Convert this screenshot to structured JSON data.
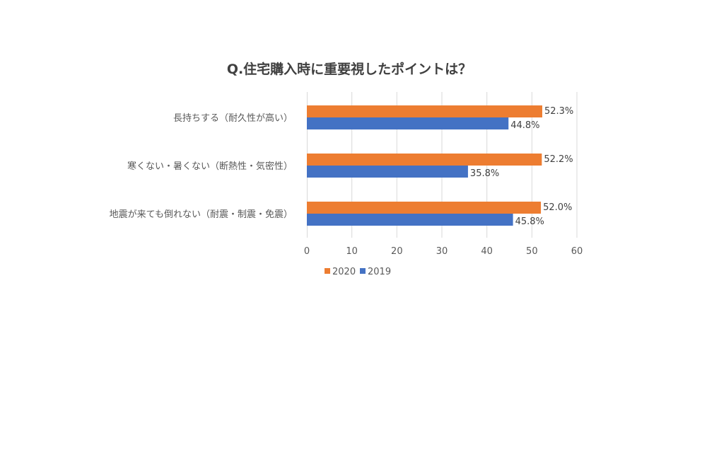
{
  "chart_data": {
    "type": "bar",
    "orientation": "horizontal",
    "title": "Q.住宅購入時に重要視したポイントは？",
    "categories": [
      "長持ちする（耐久性が高い）",
      "寒くない・暑くない（断熱性・気密性）",
      "地震が来ても倒れない（耐震・制震・免震）"
    ],
    "series": [
      {
        "name": "2020",
        "color": "#ED7D31",
        "values": [
          52.3,
          52.2,
          52.0
        ],
        "labels": [
          "52.3%",
          "52.2%",
          "52.0%"
        ]
      },
      {
        "name": "2019",
        "color": "#4472C4",
        "values": [
          44.8,
          35.8,
          45.8
        ],
        "labels": [
          "44.8%",
          "35.8%",
          "45.8%"
        ]
      }
    ],
    "xlim": [
      0,
      60
    ],
    "xticks": [
      "0",
      "10",
      "20",
      "30",
      "40",
      "50",
      "60"
    ],
    "grid": true,
    "legend": "bottom"
  }
}
